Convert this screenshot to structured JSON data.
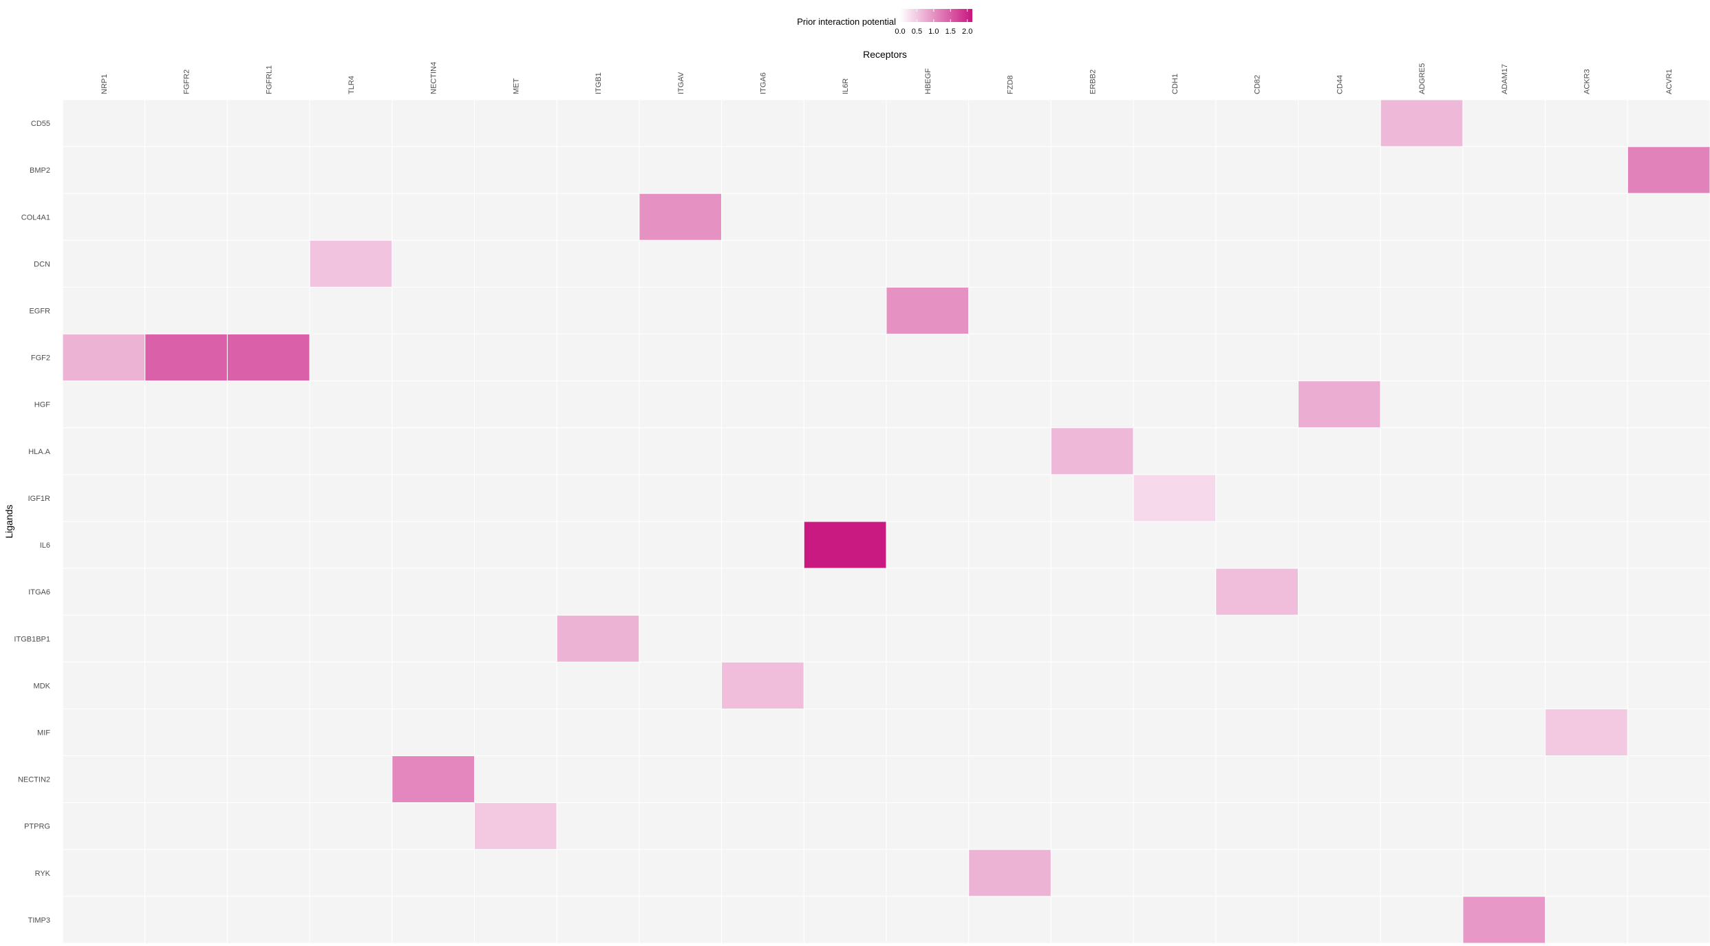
{
  "chart_data": {
    "type": "heatmap",
    "title": "",
    "xlabel": "Receptors",
    "ylabel": "Ligands",
    "x_categories": [
      "NRP1",
      "FGFR2",
      "FGFRL1",
      "TLR4",
      "NECTIN4",
      "MET",
      "ITGB1",
      "ITGAV",
      "ITGA6",
      "IL6R",
      "HBEGF",
      "FZD8",
      "ERBB2",
      "CDH1",
      "CD82",
      "CD44",
      "ADGRE5",
      "ADAM17",
      "ACKR3",
      "ACVR1"
    ],
    "y_categories": [
      "CD55",
      "BMP2",
      "COL4A1",
      "DCN",
      "EGFR",
      "FGF2",
      "HGF",
      "HLA.A",
      "IGF1R",
      "IL6",
      "ITGA6",
      "ITGB1BP1",
      "MDK",
      "MIF",
      "NECTIN2",
      "PTPRG",
      "RYK",
      "TIMP3"
    ],
    "cells": [
      {
        "ligand": "CD55",
        "receptor": "ADGRE5",
        "value": 0.65
      },
      {
        "ligand": "BMP2",
        "receptor": "ACVR1",
        "value": 1.15
      },
      {
        "ligand": "COL4A1",
        "receptor": "ITGAV",
        "value": 1.0
      },
      {
        "ligand": "DCN",
        "receptor": "TLR4",
        "value": 0.55
      },
      {
        "ligand": "EGFR",
        "receptor": "HBEGF",
        "value": 1.0
      },
      {
        "ligand": "FGF2",
        "receptor": "NRP1",
        "value": 0.7
      },
      {
        "ligand": "FGF2",
        "receptor": "FGFR2",
        "value": 1.45
      },
      {
        "ligand": "FGF2",
        "receptor": "FGFRL1",
        "value": 1.45
      },
      {
        "ligand": "HGF",
        "receptor": "CD44",
        "value": 0.75
      },
      {
        "ligand": "HLA.A",
        "receptor": "ERBB2",
        "value": 0.65
      },
      {
        "ligand": "IGF1R",
        "receptor": "CDH1",
        "value": 0.35
      },
      {
        "ligand": "IL6",
        "receptor": "IL6R",
        "value": 2.1
      },
      {
        "ligand": "ITGA6",
        "receptor": "CD82",
        "value": 0.6
      },
      {
        "ligand": "ITGB1BP1",
        "receptor": "ITGB1",
        "value": 0.7
      },
      {
        "ligand": "MDK",
        "receptor": "ITGA6",
        "value": 0.6
      },
      {
        "ligand": "MIF",
        "receptor": "ACKR3",
        "value": 0.5
      },
      {
        "ligand": "NECTIN2",
        "receptor": "NECTIN4",
        "value": 1.1
      },
      {
        "ligand": "PTPRG",
        "receptor": "MET",
        "value": 0.5
      },
      {
        "ligand": "RYK",
        "receptor": "FZD8",
        "value": 0.7
      },
      {
        "ligand": "TIMP3",
        "receptor": "ADAM17",
        "value": 0.95
      }
    ],
    "legend": {
      "title": "Prior interaction potential",
      "placement": "top",
      "ticks": [
        "0.0",
        "0.5",
        "1.0",
        "1.5",
        "2.0"
      ],
      "tick_values": [
        0,
        0.5,
        1.0,
        1.5,
        2.0
      ],
      "range": [
        0,
        2.15
      ]
    },
    "colors": {
      "low": "#ffffff",
      "high": "#c8157f",
      "empty_cell": "#f4f4f4",
      "grid": "#ffffff"
    }
  }
}
